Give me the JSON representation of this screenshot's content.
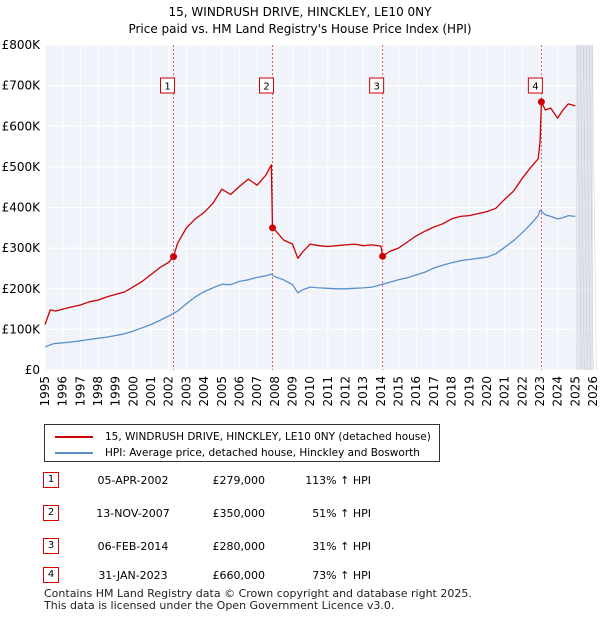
{
  "title": "15, WINDRUSH DRIVE, HINCKLEY, LE10 0NY",
  "subtitle": "Price paid vs. HM Land Registry's House Price Index (HPI)",
  "chart_data": {
    "type": "line",
    "title": "15, WINDRUSH DRIVE, HINCKLEY, LE10 0NY",
    "subtitle": "Price paid vs. HM Land Registry's House Price Index (HPI)",
    "xlim": [
      1995,
      2026
    ],
    "ylim": [
      0,
      800000
    ],
    "y_ticks": [
      {
        "value": 0,
        "label": "£0"
      },
      {
        "value": 100000,
        "label": "£100K"
      },
      {
        "value": 200000,
        "label": "£200K"
      },
      {
        "value": 300000,
        "label": "£300K"
      },
      {
        "value": 400000,
        "label": "£400K"
      },
      {
        "value": 500000,
        "label": "£500K"
      },
      {
        "value": 600000,
        "label": "£600K"
      },
      {
        "value": 700000,
        "label": "£700K"
      },
      {
        "value": 800000,
        "label": "£800K"
      }
    ],
    "x_ticks": [
      "1995",
      "1996",
      "1997",
      "1998",
      "1999",
      "2000",
      "2001",
      "2002",
      "2003",
      "2004",
      "2005",
      "2006",
      "2007",
      "2008",
      "2009",
      "2010",
      "2011",
      "2012",
      "2013",
      "2014",
      "2015",
      "2016",
      "2017",
      "2018",
      "2019",
      "2020",
      "2021",
      "2022",
      "2023",
      "2024",
      "2025",
      "2026"
    ],
    "grid": true,
    "shaded_region_start": 2025.0,
    "series": [
      {
        "name": "15, WINDRUSH DRIVE, HINCKLEY, LE10 0NY (detached house)",
        "color": "#cc0000",
        "x": [
          1995.0,
          1995.3,
          1995.6,
          1996.0,
          1996.5,
          1997.0,
          1997.5,
          1998.0,
          1998.5,
          1999.0,
          1999.5,
          2000.0,
          2000.5,
          2001.0,
          2001.5,
          2002.0,
          2002.27,
          2002.5,
          2003.0,
          2003.5,
          2004.0,
          2004.5,
          2005.0,
          2005.5,
          2006.0,
          2006.5,
          2007.0,
          2007.5,
          2007.8,
          2007.87,
          2008.0,
          2008.5,
          2009.0,
          2009.3,
          2009.6,
          2010.0,
          2010.5,
          2011.0,
          2011.5,
          2012.0,
          2012.5,
          2013.0,
          2013.5,
          2014.0,
          2014.1,
          2014.5,
          2015.0,
          2015.5,
          2016.0,
          2016.5,
          2017.0,
          2017.5,
          2018.0,
          2018.5,
          2019.0,
          2019.5,
          2020.0,
          2020.5,
          2021.0,
          2021.5,
          2022.0,
          2022.5,
          2022.9,
          2023.0,
          2023.08,
          2023.3,
          2023.6,
          2024.0,
          2024.3,
          2024.6,
          2025.0
        ],
        "y": [
          112000,
          148000,
          145000,
          150000,
          155000,
          160000,
          168000,
          172000,
          180000,
          186000,
          192000,
          205000,
          218000,
          235000,
          252000,
          265000,
          279000,
          312000,
          350000,
          372000,
          388000,
          410000,
          445000,
          432000,
          452000,
          470000,
          455000,
          480000,
          505000,
          350000,
          345000,
          320000,
          310000,
          275000,
          292000,
          310000,
          306000,
          304000,
          306000,
          308000,
          310000,
          306000,
          308000,
          305000,
          280000,
          292000,
          300000,
          315000,
          330000,
          342000,
          352000,
          360000,
          372000,
          378000,
          380000,
          385000,
          390000,
          398000,
          420000,
          440000,
          472000,
          500000,
          520000,
          560000,
          660000,
          640000,
          645000,
          620000,
          640000,
          655000,
          650000
        ]
      },
      {
        "name": "HPI: Average price, detached house, Hinckley and Bosworth",
        "color": "#5b8fc9",
        "x": [
          1995.0,
          1995.5,
          1996.0,
          1996.5,
          1997.0,
          1997.5,
          1998.0,
          1998.5,
          1999.0,
          1999.5,
          2000.0,
          2000.5,
          2001.0,
          2001.5,
          2002.0,
          2002.5,
          2003.0,
          2003.5,
          2004.0,
          2004.5,
          2005.0,
          2005.5,
          2006.0,
          2006.5,
          2007.0,
          2007.5,
          2007.8,
          2008.0,
          2008.5,
          2009.0,
          2009.3,
          2009.6,
          2010.0,
          2010.5,
          2011.0,
          2011.5,
          2012.0,
          2012.5,
          2013.0,
          2013.5,
          2014.0,
          2014.5,
          2015.0,
          2015.5,
          2016.0,
          2016.5,
          2017.0,
          2017.5,
          2018.0,
          2018.5,
          2019.0,
          2019.5,
          2020.0,
          2020.5,
          2021.0,
          2021.5,
          2022.0,
          2022.5,
          2022.9,
          2023.0,
          2023.3,
          2023.6,
          2024.0,
          2024.3,
          2024.6,
          2025.0
        ],
        "y": [
          57000,
          65000,
          67000,
          69000,
          72000,
          75000,
          78000,
          81000,
          85000,
          89000,
          96000,
          104000,
          112000,
          122000,
          133000,
          145000,
          163000,
          180000,
          193000,
          202000,
          211000,
          210000,
          218000,
          222000,
          228000,
          232000,
          236000,
          230000,
          222000,
          210000,
          190000,
          198000,
          204000,
          202000,
          201000,
          200000,
          200000,
          201000,
          202000,
          204000,
          210000,
          216000,
          222000,
          227000,
          234000,
          241000,
          251000,
          258000,
          264000,
          269000,
          272000,
          275000,
          278000,
          286000,
          302000,
          318000,
          338000,
          360000,
          380000,
          393000,
          382000,
          378000,
          372000,
          375000,
          380000,
          378000
        ]
      }
    ],
    "sales": [
      {
        "num": "1",
        "x": 2002.27,
        "y": 279000,
        "date": "05-APR-2002",
        "price": "£279,000",
        "hpi": "113% ↑ HPI"
      },
      {
        "num": "2",
        "x": 2007.87,
        "y": 350000,
        "date": "13-NOV-2007",
        "price": "£350,000",
        "hpi": "51% ↑ HPI"
      },
      {
        "num": "3",
        "x": 2014.1,
        "y": 280000,
        "date": "06-FEB-2014",
        "price": "£280,000",
        "hpi": "31% ↑ HPI"
      },
      {
        "num": "4",
        "x": 2023.08,
        "y": 660000,
        "date": "31-JAN-2023",
        "price": "£660,000",
        "hpi": "73% ↑ HPI"
      }
    ]
  },
  "legend": {
    "property_label": "15, WINDRUSH DRIVE, HINCKLEY, LE10 0NY (detached house)",
    "hpi_label": "HPI: Average price, detached house, Hinckley and Bosworth"
  },
  "footer": {
    "line1": "Contains HM Land Registry data © Crown copyright and database right 2025.",
    "line2": "This data is licensed under the Open Government Licence v3.0."
  }
}
